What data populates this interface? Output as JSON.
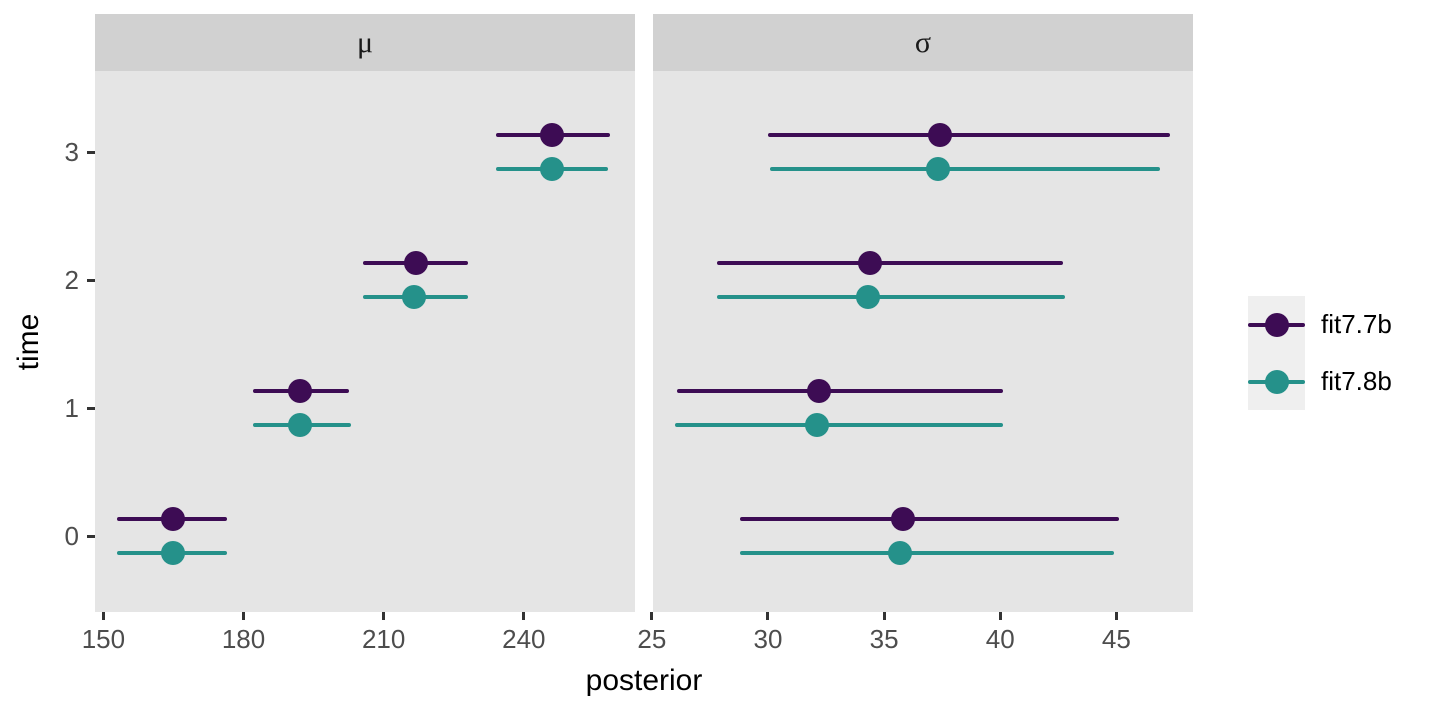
{
  "chart_data": {
    "type": "pointrange",
    "xlabel": "posterior",
    "ylabel": "time",
    "yticks": [
      0,
      1,
      2,
      3
    ],
    "legend": {
      "position": "right",
      "items": [
        {
          "label": "fit7.7b",
          "color": "#3d0c54"
        },
        {
          "label": "fit7.8b",
          "color": "#25918a"
        }
      ]
    },
    "theme": {
      "panel_bg": "#e5e5e5",
      "strip_bg": "#d1d1d1",
      "axis_text": "#4d4d4d",
      "legend_key_bg": "#efefef",
      "background": "#ffffff"
    },
    "facets": [
      {
        "label": "μ",
        "xticks": [
          150,
          180,
          210,
          240
        ],
        "xlim": [
          148.2,
          263.8
        ],
        "series": [
          {
            "name": "fit7.7b",
            "color": "#3d0c54",
            "points": [
              {
                "time": 0,
                "est": 165.0,
                "lo": 153.0,
                "hi": 176.5
              },
              {
                "time": 1,
                "est": 192.0,
                "lo": 182.0,
                "hi": 202.5
              },
              {
                "time": 2,
                "est": 217.0,
                "lo": 205.5,
                "hi": 228.0
              },
              {
                "time": 3,
                "est": 246.0,
                "lo": 234.0,
                "hi": 258.5
              }
            ]
          },
          {
            "name": "fit7.8b",
            "color": "#25918a",
            "points": [
              {
                "time": 0,
                "est": 165.0,
                "lo": 153.0,
                "hi": 176.5
              },
              {
                "time": 1,
                "est": 192.0,
                "lo": 182.0,
                "hi": 203.0
              },
              {
                "time": 2,
                "est": 216.5,
                "lo": 205.5,
                "hi": 228.0
              },
              {
                "time": 3,
                "est": 246.0,
                "lo": 234.0,
                "hi": 258.0
              }
            ]
          }
        ]
      },
      {
        "label": "σ",
        "xticks": [
          25,
          30,
          35,
          40,
          45
        ],
        "xlim": [
          25.05,
          48.3
        ],
        "series": [
          {
            "name": "fit7.7b",
            "color": "#3d0c54",
            "points": [
              {
                "time": 0,
                "est": 35.8,
                "lo": 28.8,
                "hi": 45.1
              },
              {
                "time": 1,
                "est": 32.2,
                "lo": 26.1,
                "hi": 40.1
              },
              {
                "time": 2,
                "est": 34.4,
                "lo": 27.8,
                "hi": 42.7
              },
              {
                "time": 3,
                "est": 37.4,
                "lo": 30.0,
                "hi": 47.3
              }
            ]
          },
          {
            "name": "fit7.8b",
            "color": "#25918a",
            "points": [
              {
                "time": 0,
                "est": 35.7,
                "lo": 28.8,
                "hi": 44.9
              },
              {
                "time": 1,
                "est": 32.1,
                "lo": 26.0,
                "hi": 40.1
              },
              {
                "time": 2,
                "est": 34.3,
                "lo": 27.8,
                "hi": 42.8
              },
              {
                "time": 3,
                "est": 37.3,
                "lo": 30.1,
                "hi": 46.9
              }
            ]
          }
        ]
      }
    ]
  }
}
